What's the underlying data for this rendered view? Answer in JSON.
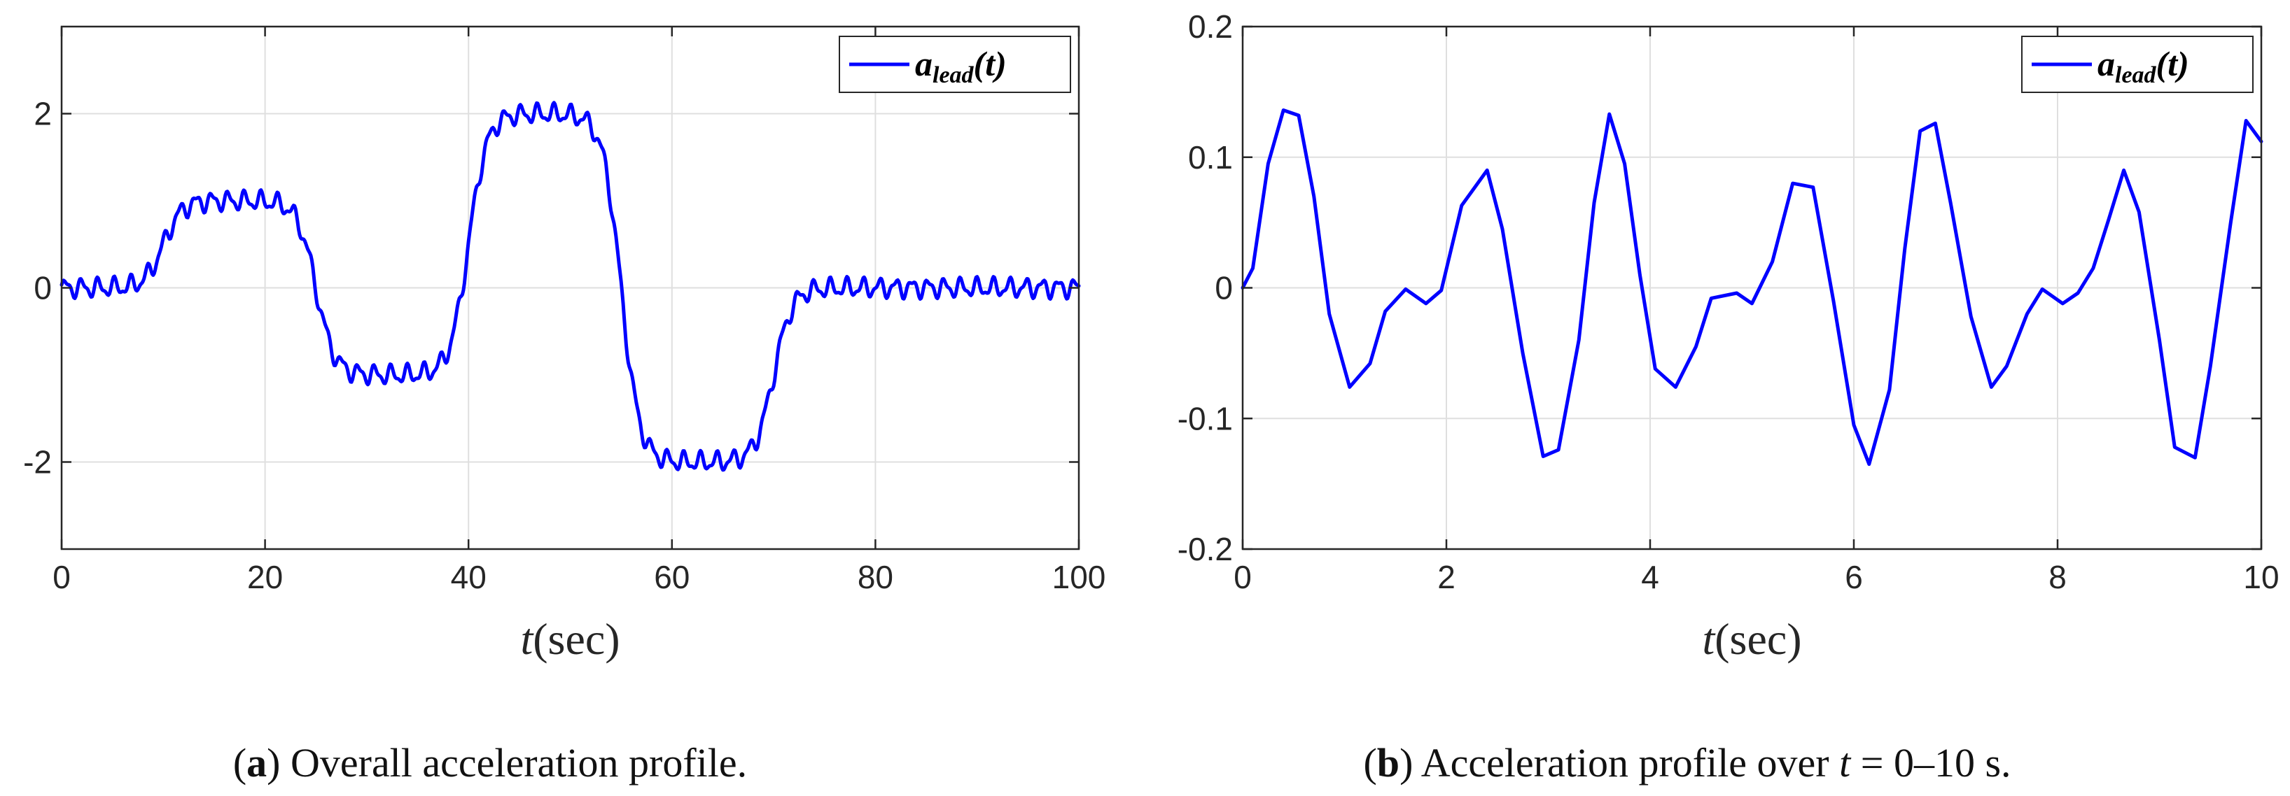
{
  "figure": {
    "colors": {
      "series": "#0000ff",
      "axis": "#262626",
      "grid": "#dfdfdf"
    }
  },
  "chart_data": [
    {
      "type": "line",
      "panel": "a",
      "title": "",
      "xlabel_var": "t",
      "xlabel_unit": "(sec)",
      "ylabel": "",
      "xlim": [
        0,
        100
      ],
      "ylim": [
        -3,
        3
      ],
      "xticks": [
        0,
        20,
        40,
        60,
        80,
        100
      ],
      "xtick_labels": [
        "0",
        "20",
        "40",
        "60",
        "80",
        "100"
      ],
      "yticks": [
        -2,
        0,
        2
      ],
      "ytick_labels": [
        "-2",
        "0",
        "2"
      ],
      "grid": true,
      "legend": {
        "position": "top-right",
        "label_main": "a",
        "label_sub": "lead",
        "label_arg": "(t)"
      },
      "series": [
        {
          "name": "a_lead(t)",
          "segments": [
            {
              "t_start": 0,
              "t_end": 10,
              "level": 0
            },
            {
              "t_start": 10,
              "t_end": 25,
              "level": 1
            },
            {
              "t_start": 25,
              "t_end": 40,
              "level": -1
            },
            {
              "t_start": 40,
              "t_end": 55,
              "level": 2
            },
            {
              "t_start": 55,
              "t_end": 70,
              "level": -2
            },
            {
              "t_start": 70,
              "t_end": 100,
              "level": 0
            }
          ],
          "ripple_amplitude": 0.13,
          "ripple_period": 1.6,
          "transition_time_constant": 0.9
        }
      ],
      "caption_tag": "a",
      "caption_text": " Overall acceleration profile."
    },
    {
      "type": "line",
      "panel": "b",
      "title": "",
      "xlabel_var": "t",
      "xlabel_unit": "(sec)",
      "ylabel": "",
      "xlim": [
        0,
        10
      ],
      "ylim": [
        -0.2,
        0.2
      ],
      "xticks": [
        0,
        2,
        4,
        6,
        8,
        10
      ],
      "xtick_labels": [
        "0",
        "2",
        "4",
        "6",
        "8",
        "10"
      ],
      "yticks": [
        -0.2,
        -0.1,
        0,
        0.1,
        0.2
      ],
      "ytick_labels": [
        "-0.2",
        "-0.1",
        "0",
        "0.1",
        "0.2"
      ],
      "grid": true,
      "legend": {
        "position": "top-right",
        "label_main": "a",
        "label_sub": "lead",
        "label_arg": "(t)"
      },
      "series": [
        {
          "name": "a_lead(t)",
          "x": [
            0,
            0.1,
            0.25,
            0.4,
            0.55,
            0.7,
            0.85,
            1.05,
            1.25,
            1.4,
            1.6,
            1.8,
            1.95,
            2.15,
            2.4,
            2.55,
            2.75,
            2.95,
            3.1,
            3.3,
            3.45,
            3.6,
            3.75,
            3.9,
            4.05,
            4.25,
            4.45,
            4.6,
            4.85,
            5.0,
            5.2,
            5.4,
            5.6,
            5.8,
            6.0,
            6.15,
            6.35,
            6.5,
            6.65,
            6.8,
            6.95,
            7.15,
            7.35,
            7.5,
            7.7,
            7.85,
            8.05,
            8.2,
            8.35,
            8.5,
            8.65,
            8.8,
            9.0,
            9.15,
            9.35,
            9.5,
            9.7,
            9.85,
            10.0
          ],
          "y": [
            0.0,
            0.015,
            0.095,
            0.136,
            0.132,
            0.07,
            -0.02,
            -0.076,
            -0.058,
            -0.018,
            -0.001,
            -0.012,
            -0.002,
            0.063,
            0.09,
            0.045,
            -0.05,
            -0.129,
            -0.124,
            -0.04,
            0.065,
            0.133,
            0.095,
            0.01,
            -0.062,
            -0.076,
            -0.045,
            -0.008,
            -0.004,
            -0.012,
            0.02,
            0.08,
            0.077,
            -0.01,
            -0.105,
            -0.135,
            -0.078,
            0.03,
            0.12,
            0.126,
            0.065,
            -0.022,
            -0.076,
            -0.06,
            -0.02,
            -0.001,
            -0.012,
            -0.004,
            0.015,
            0.052,
            0.09,
            0.058,
            -0.04,
            -0.122,
            -0.13,
            -0.06,
            0.05,
            0.128,
            0.112
          ]
        }
      ],
      "caption_tag": "b",
      "caption_text": " Acceleration profile over ",
      "caption_var": "t",
      "caption_tail": " = 0–10 s."
    }
  ]
}
